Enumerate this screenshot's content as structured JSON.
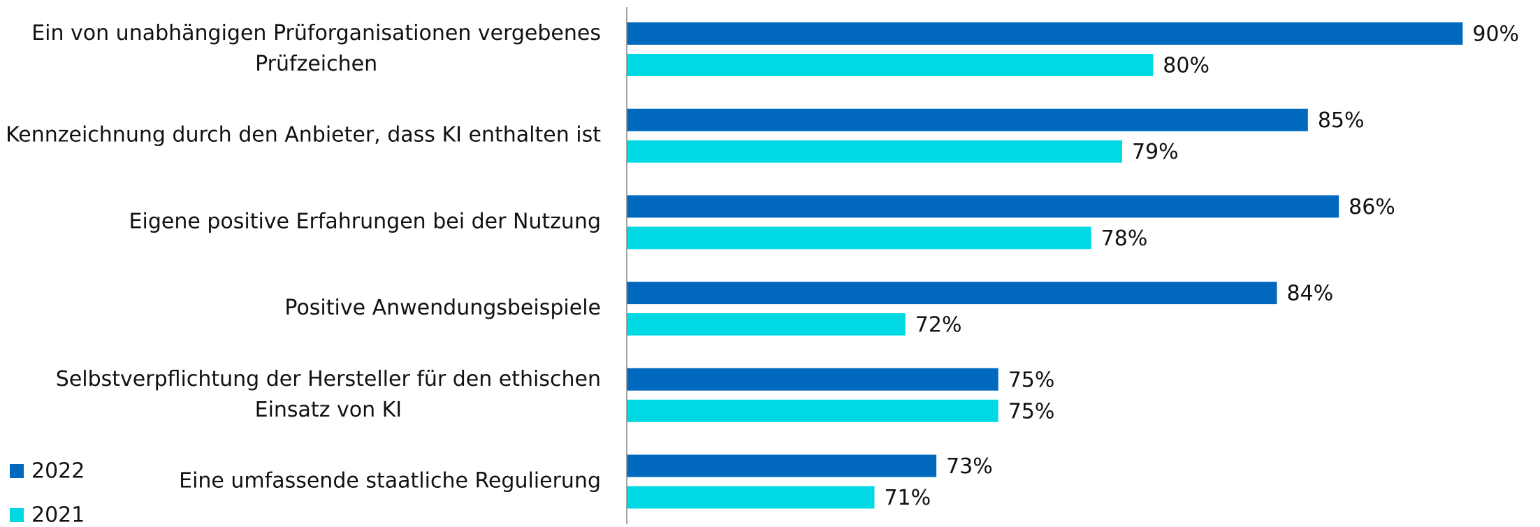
{
  "chart_data": {
    "type": "bar",
    "orientation": "horizontal",
    "categories": [
      [
        "Ein von unabhängigen Prüforganisationen vergebenes",
        "Prüfzeichen"
      ],
      [
        "Kennzeichnung durch den Anbieter, dass KI enthalten ist"
      ],
      [
        "Eigene positive Erfahrungen bei der Nutzung"
      ],
      [
        "Positive Anwendungsbeispiele"
      ],
      [
        "Selbstverpflichtung der Hersteller für den ethischen",
        "Einsatz von KI"
      ],
      [
        "Eine umfassende staatliche Regulierung"
      ]
    ],
    "series": [
      {
        "name": "2022",
        "color": "#0069be",
        "values": [
          90,
          85,
          86,
          84,
          75,
          73
        ],
        "value_labels": [
          "90%",
          "85%",
          "86%",
          "84%",
          "75%",
          "73%"
        ]
      },
      {
        "name": "2021",
        "color": "#00d9e3",
        "values": [
          80,
          79,
          78,
          72,
          75,
          71
        ],
        "value_labels": [
          "80%",
          "79%",
          "78%",
          "72%",
          "75%",
          "71%"
        ]
      }
    ],
    "xlim": [
      63,
      92
    ],
    "legend": "bottom-left"
  }
}
